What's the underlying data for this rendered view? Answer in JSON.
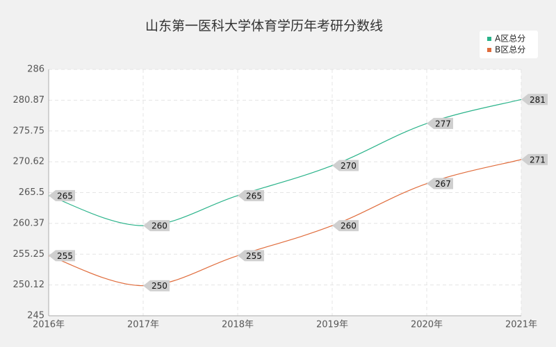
{
  "chart_data": {
    "type": "line",
    "title": "山东第一医科大学体育学历年考研分数线",
    "categories": [
      "2016年",
      "2017年",
      "2018年",
      "2019年",
      "2020年",
      "2021年"
    ],
    "series": [
      {
        "name": "A区总分",
        "color": "#2ab38a",
        "values": [
          265,
          260,
          265,
          270,
          277,
          281
        ]
      },
      {
        "name": "B区总分",
        "color": "#e06c3c",
        "values": [
          255,
          250,
          255,
          260,
          267,
          271
        ]
      }
    ],
    "ylim": [
      245,
      286
    ],
    "yticks": [
      245,
      250.12,
      255.25,
      260.37,
      265.5,
      270.62,
      275.75,
      280.87,
      286
    ],
    "grid": true,
    "legend": "top-right"
  }
}
